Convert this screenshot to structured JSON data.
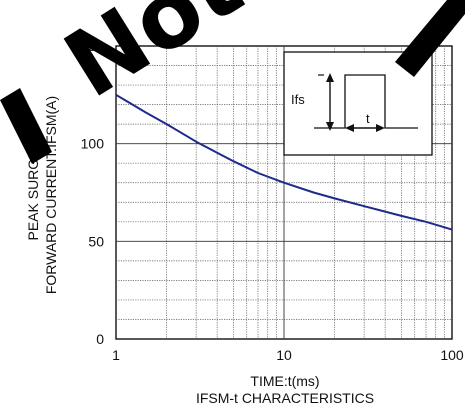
{
  "chart_data": {
    "type": "line",
    "title": "IFSM-t CHARACTERISTICS",
    "xlabel": "TIME:t(ms)",
    "ylabel_line1": "PEAK SURGE",
    "ylabel_line2": "FORWARD CURRENT:IFSM(A)",
    "x_scale": "log",
    "xlim": [
      1,
      100
    ],
    "ylim": [
      0,
      150
    ],
    "grid": true,
    "x_ticks": [
      "1",
      "10",
      "100"
    ],
    "y_ticks": [
      "0",
      "50",
      "100",
      "150"
    ],
    "series": [
      {
        "color": "#1f2a8c",
        "x": [
          1,
          1.5,
          2,
          3,
          5,
          7,
          10,
          15,
          20,
          30,
          50,
          70,
          100
        ],
        "y": [
          125,
          116,
          110,
          101,
          91,
          85,
          80,
          75,
          72,
          68,
          63,
          60,
          56
        ]
      }
    ],
    "inset": {
      "label_current": "Ifs",
      "label_time": "t"
    }
  },
  "watermark": {
    "text": "Not",
    "color": "#000000"
  }
}
